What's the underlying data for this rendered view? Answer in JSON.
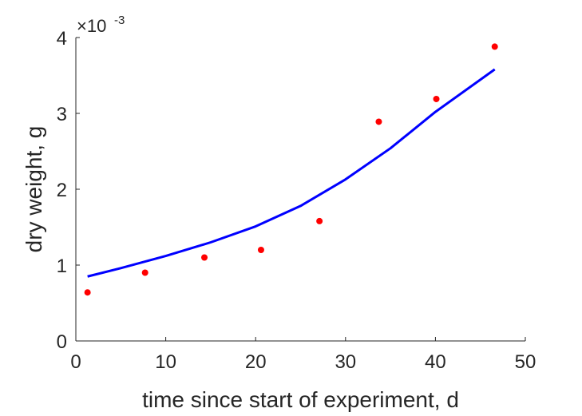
{
  "chart_data": {
    "type": "scatter",
    "title": "",
    "xlabel": "time since start of experiment, d",
    "ylabel": "dry weight, g",
    "xlim": [
      0,
      50
    ],
    "ylim": [
      0,
      4
    ],
    "x_ticks": [
      "0",
      "10",
      "20",
      "30",
      "40",
      "50"
    ],
    "y_ticks": [
      "0",
      "1",
      "2",
      "3",
      "4"
    ],
    "y_exponent_label": {
      "base": "×10",
      "exponent": "-3"
    },
    "y_scale_factor": 0.001,
    "grid": false,
    "legend": "none",
    "series": [
      {
        "kind": "scatter",
        "color": "#ff0000",
        "x": [
          1.3,
          7.7,
          14.3,
          20.6,
          27.1,
          33.7,
          40.1,
          46.6
        ],
        "y": [
          0.64,
          0.9,
          1.1,
          1.2,
          1.58,
          2.89,
          3.19,
          3.88
        ]
      },
      {
        "kind": "line",
        "color": "#0000ff",
        "x": [
          1.3,
          5,
          10,
          15,
          20,
          25,
          30,
          35,
          40,
          46.6
        ],
        "y": [
          0.85,
          0.96,
          1.12,
          1.3,
          1.51,
          1.78,
          2.13,
          2.54,
          3.02,
          3.58
        ]
      }
    ]
  }
}
